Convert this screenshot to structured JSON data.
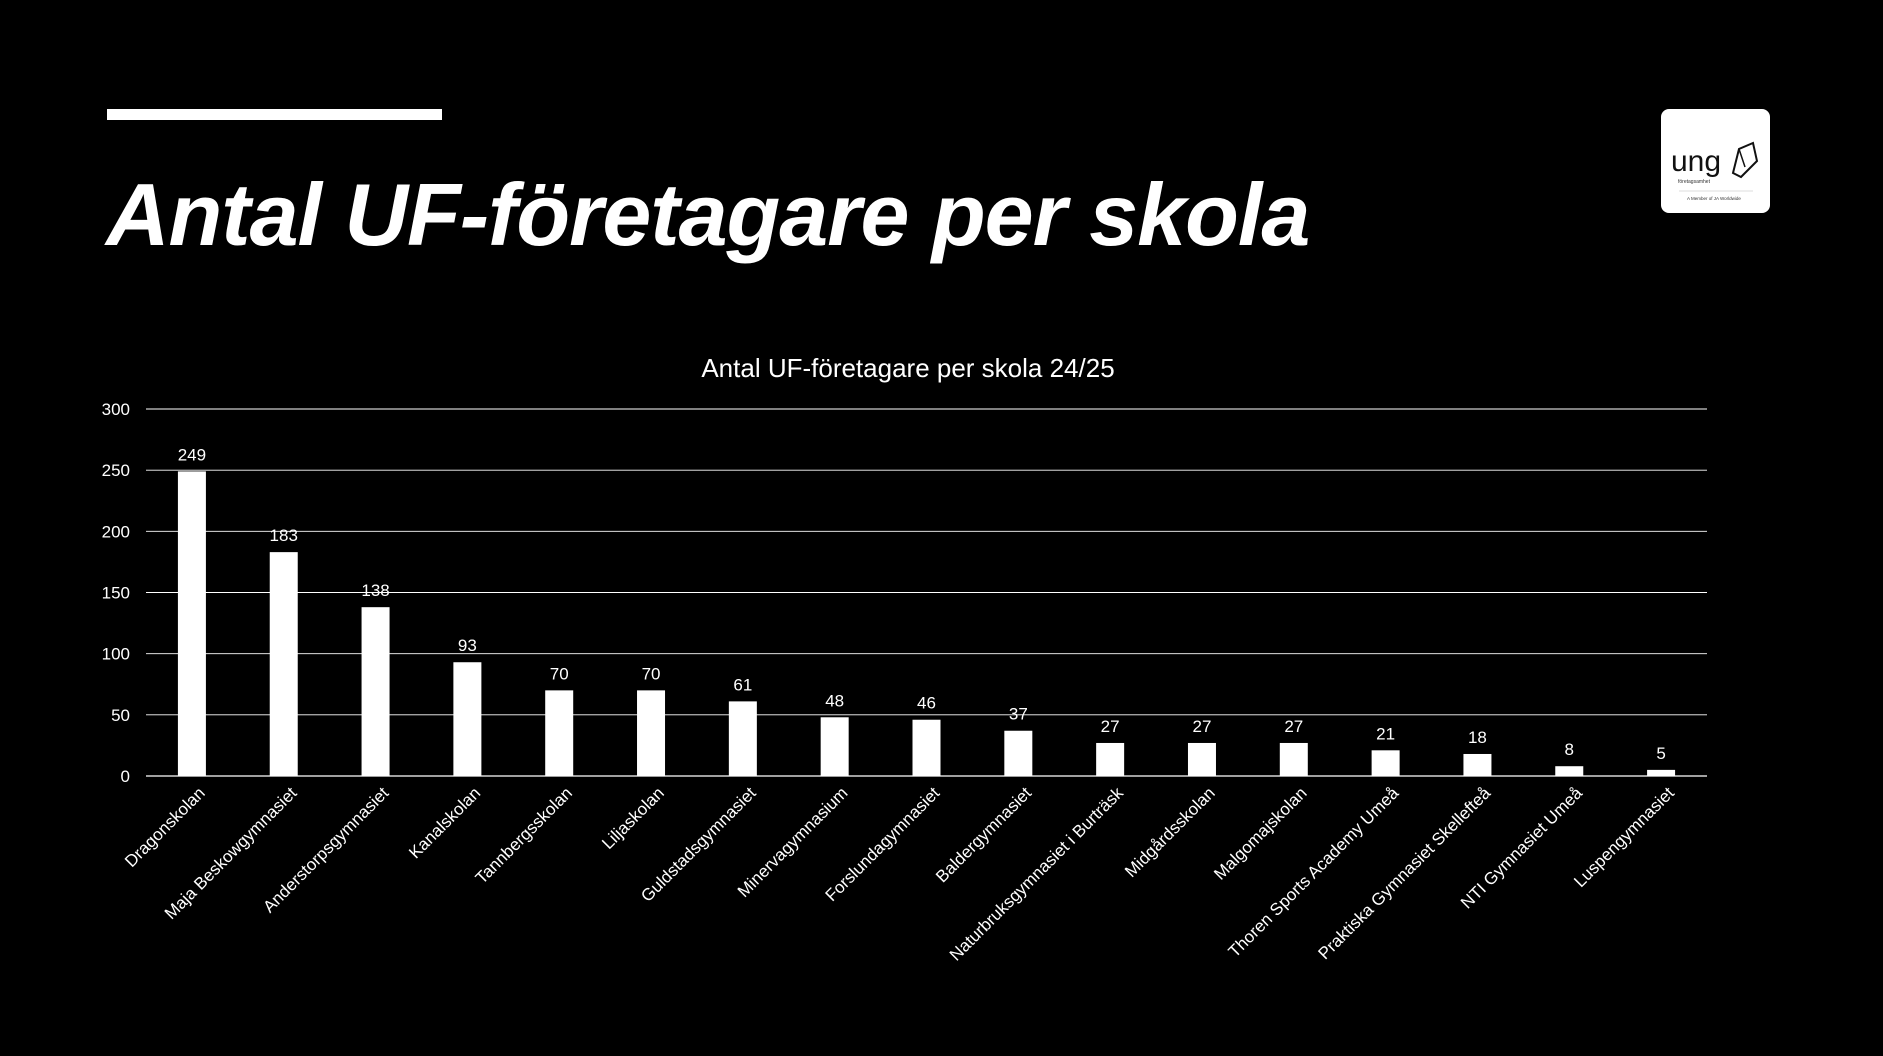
{
  "slide": {
    "title": "Antal UF-företagare per skola"
  },
  "logo": {
    "wordmark": "ung",
    "subtitle": "företagsamhet",
    "tagline": "A Member of JA Worldwide",
    "icon": "pen-nib-icon"
  },
  "colors": {
    "background": "#000000",
    "foreground": "#ffffff",
    "gridline": "#ffffff"
  },
  "chart_data": {
    "type": "bar",
    "title": "Antal UF-företagare per skola 24/25",
    "xlabel": "",
    "ylabel": "",
    "ylim": [
      0,
      300
    ],
    "yticks": [
      0,
      50,
      100,
      150,
      200,
      250,
      300
    ],
    "grid": true,
    "legend": "none",
    "data_labels": true,
    "categories": [
      "Dragonskolan",
      "Maja Beskowgymnasiet",
      "Anderstorpsgymnasiet",
      "Kanalskolan",
      "Tannbergsskolan",
      "Liljaskolan",
      "Guldstadsgymnasiet",
      "Minervagymnasium",
      "Forslundagymnasiet",
      "Baldergymnasiet",
      "Naturbruksgymnasiet i Burträsk",
      "Midgårdsskolan",
      "Malgomajskolan",
      "Thoren Sports Academy Umeå",
      "Praktiska Gymnasiet Skellefteå",
      "NTI Gymnasiet Umeå",
      "Luspengymnasiet"
    ],
    "values": [
      249,
      183,
      138,
      93,
      70,
      70,
      61,
      48,
      46,
      37,
      27,
      27,
      27,
      21,
      18,
      8,
      5
    ]
  }
}
